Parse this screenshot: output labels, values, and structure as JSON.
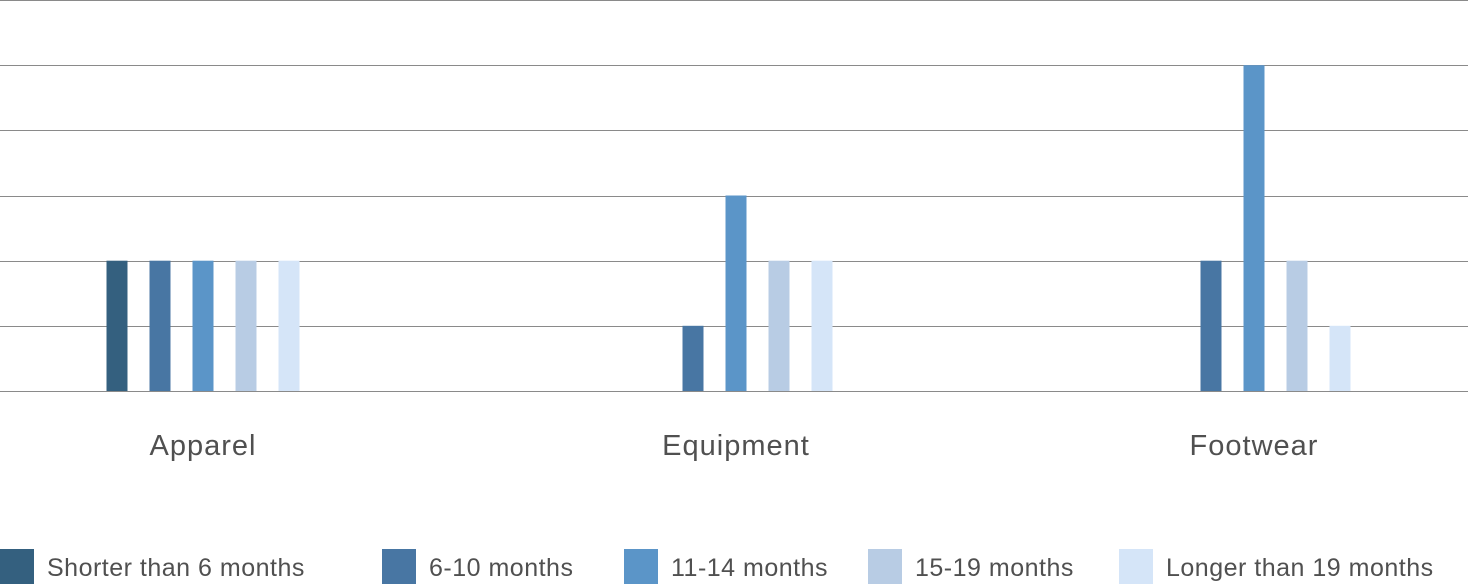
{
  "chart_data": {
    "type": "bar",
    "categories": [
      "Apparel",
      "Equipment",
      "Footwear"
    ],
    "series": [
      {
        "name": "Shorter than 6 months",
        "values": [
          2,
          0,
          0
        ],
        "color": "#34607f"
      },
      {
        "name": "6-10 months",
        "values": [
          2,
          1,
          2
        ],
        "color": "#4876a3"
      },
      {
        "name": "11-14 months",
        "values": [
          2,
          3,
          5
        ],
        "color": "#5b95c8"
      },
      {
        "name": "15-19 months",
        "values": [
          2,
          2,
          2
        ],
        "color": "#b8cce4"
      },
      {
        "name": "Longer than 19 months",
        "values": [
          2,
          2,
          1
        ],
        "color": "#d5e5f8"
      }
    ],
    "ylim": [
      0,
      6
    ],
    "yticks": [
      0,
      1,
      2,
      3,
      4,
      5,
      6
    ],
    "grid": true,
    "legend": "bottom"
  }
}
